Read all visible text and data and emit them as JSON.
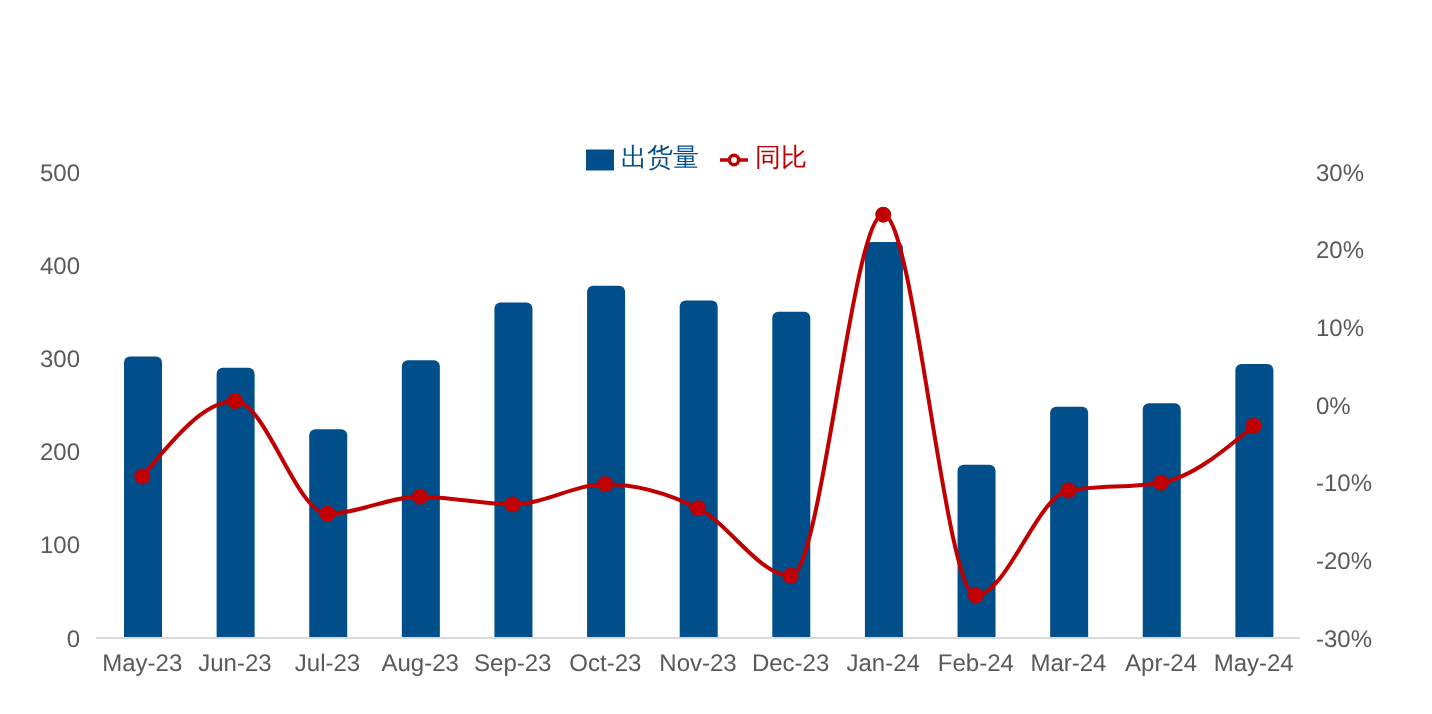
{
  "chart_data": {
    "type": "bar",
    "categories": [
      "May-23",
      "Jun-23",
      "Jul-23",
      "Aug-23",
      "Sep-23",
      "Oct-23",
      "Nov-23",
      "Dec-23",
      "Jan-24",
      "Feb-24",
      "Mar-24",
      "Apr-24",
      "May-24"
    ],
    "series": [
      {
        "name": "出货量",
        "color": "#004e8a",
        "values": [
          302,
          290,
          224,
          298,
          360,
          378,
          362,
          350,
          425,
          186,
          248,
          252,
          294
        ]
      },
      {
        "name": "同比",
        "type": "line",
        "axis": "y2",
        "color": "#c00000",
        "marker": "circle",
        "values": [
          -9.2,
          0.5,
          -14,
          -11.8,
          -12.8,
          -10.2,
          -13.3,
          -22,
          24.5,
          -24.5,
          -11,
          -10,
          -2.7
        ]
      }
    ],
    "ylim": [
      0,
      500
    ],
    "yticks": [
      0,
      100,
      200,
      300,
      400,
      500
    ],
    "y2lim": [
      -30,
      30
    ],
    "y2ticks": [
      {
        "value": -30,
        "label": "-30%"
      },
      {
        "value": -20,
        "label": "-20%"
      },
      {
        "value": -10,
        "label": "-10%"
      },
      {
        "value": 0,
        "label": "0%"
      },
      {
        "value": 10,
        "label": "10%"
      },
      {
        "value": 20,
        "label": "20%"
      },
      {
        "value": 30,
        "label": "30%"
      }
    ],
    "grid": false,
    "legend": "top"
  }
}
